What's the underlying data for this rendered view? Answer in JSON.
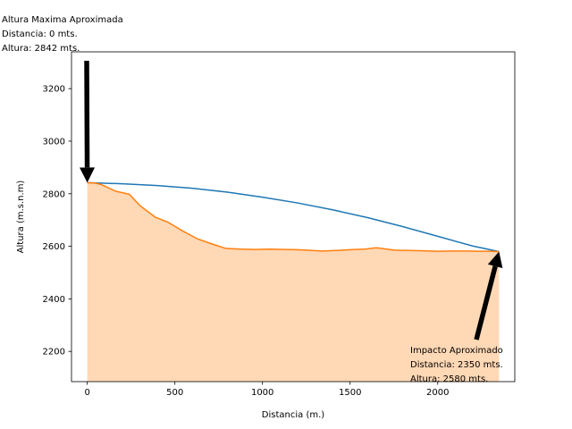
{
  "chart_data": {
    "type": "line",
    "xlabel": "Distancia (m.)",
    "ylabel": "Altura (m.s.n.m)",
    "xlim": [
      -90,
      2440
    ],
    "ylim": [
      2085,
      3340
    ],
    "x_ticks": [
      0,
      500,
      1000,
      1500,
      2000
    ],
    "y_ticks": [
      2200,
      2400,
      2600,
      2800,
      3000,
      3200
    ],
    "series": [
      {
        "color": "#1f77b4",
        "x": [
          0,
          200,
          400,
          600,
          800,
          1000,
          1200,
          1400,
          1600,
          1800,
          2000,
          2200,
          2350
        ],
        "y": [
          2842,
          2838,
          2831,
          2821,
          2806,
          2787,
          2765,
          2739,
          2709,
          2675,
          2638,
          2601,
          2580
        ]
      },
      {
        "color": "#ff7f0e",
        "fill_color": "#ffd8b5",
        "x": [
          0,
          50,
          80,
          160,
          240,
          300,
          390,
          460,
          540,
          630,
          720,
          790,
          880,
          960,
          1040,
          1120,
          1200,
          1260,
          1340,
          1420,
          1500,
          1580,
          1640,
          1660,
          1700,
          1760,
          1840,
          1920,
          2000,
          2080,
          2160,
          2240,
          2300,
          2350
        ],
        "y": [
          2842,
          2840,
          2835,
          2810,
          2798,
          2755,
          2710,
          2692,
          2660,
          2628,
          2607,
          2592,
          2589,
          2588,
          2589,
          2588,
          2587,
          2585,
          2582,
          2584,
          2587,
          2589,
          2594,
          2594,
          2590,
          2585,
          2584,
          2583,
          2581,
          2582,
          2582,
          2581,
          2581,
          2580
        ]
      }
    ],
    "annotations": [
      {
        "lines": [
          "Altura Maxima Aproximada",
          "Distancia: 0 mts.",
          "Altura: 2842 mts."
        ],
        "point": [
          0,
          2842
        ]
      },
      {
        "lines": [
          "Impacto Aproximado",
          "Distancia: 2350 mts.",
          "Altura: 2580 mts."
        ],
        "point": [
          2350,
          2580
        ]
      }
    ]
  }
}
